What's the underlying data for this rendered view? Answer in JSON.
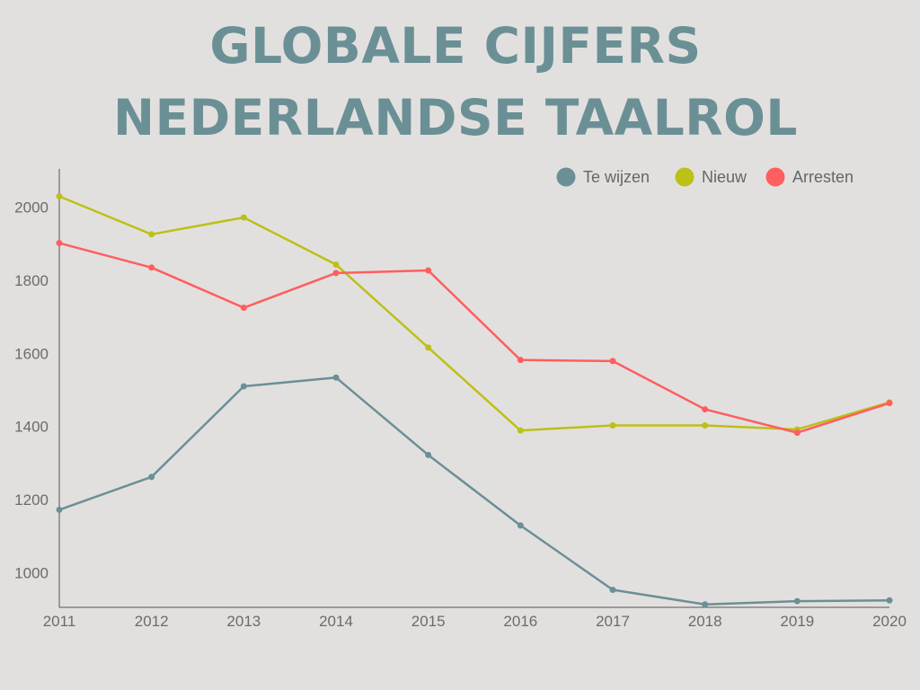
{
  "title": {
    "line1": "GLOBALE CIJFERS",
    "line2": "NEDERLANDSE TAALROL"
  },
  "chart_data": {
    "type": "line",
    "x": [
      "2011",
      "2012",
      "2013",
      "2014",
      "2015",
      "2016",
      "2017",
      "2018",
      "2019",
      "2020"
    ],
    "series": [
      {
        "name": "Te wijzen",
        "color": "#6a9095",
        "values": [
          1172,
          1262,
          1510,
          1534,
          1322,
          1129,
          953,
          913,
          922,
          924
        ]
      },
      {
        "name": "Nieuw",
        "color": "#bcc017",
        "values": [
          2030,
          1926,
          1972,
          1843,
          1616,
          1389,
          1403,
          1403,
          1392,
          1466
        ]
      },
      {
        "name": "Arresten",
        "color": "#ff5e5e",
        "values": [
          1902,
          1835,
          1725,
          1820,
          1827,
          1582,
          1579,
          1447,
          1383,
          1464
        ]
      }
    ],
    "yticks": [
      1000,
      1200,
      1400,
      1600,
      1800,
      2000
    ],
    "ylim": [
      905,
      2105
    ],
    "xlabel": "",
    "ylabel": "",
    "grid": false,
    "legend": "top-right"
  }
}
